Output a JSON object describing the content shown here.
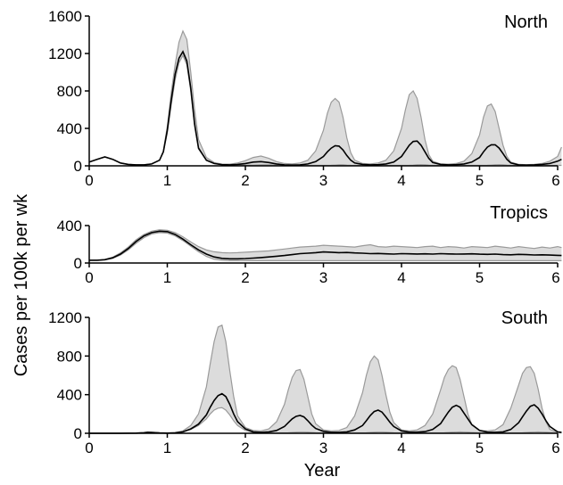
{
  "chart_data": [
    {
      "type": "area",
      "title": "North",
      "xlim": [
        0,
        6
      ],
      "ylim": [
        0,
        1600
      ],
      "x_ticks": [
        "0",
        "1",
        "2",
        "3",
        "4",
        "5",
        "6"
      ],
      "y_ticks": [
        "0",
        "400",
        "800",
        "1200",
        "1600"
      ],
      "grid": false,
      "series": [
        {
          "x": [
            0,
            0.1,
            0.2,
            0.3,
            0.4,
            0.5,
            0.6,
            0.7,
            0.8,
            0.9,
            0.95,
            1.0,
            1.05,
            1.1,
            1.15,
            1.2,
            1.25,
            1.3,
            1.35,
            1.4,
            1.5,
            1.6,
            1.7,
            1.8,
            1.9,
            2.0,
            2.1,
            2.2,
            2.3,
            2.4,
            2.5,
            2.6,
            2.7,
            2.8,
            2.9,
            3.0,
            3.05,
            3.1,
            3.15,
            3.2,
            3.25,
            3.3,
            3.35,
            3.4,
            3.5,
            3.6,
            3.7,
            3.8,
            3.9,
            4.0,
            4.05,
            4.1,
            4.15,
            4.2,
            4.25,
            4.3,
            4.35,
            4.4,
            4.5,
            4.6,
            4.7,
            4.8,
            4.9,
            5.0,
            5.05,
            5.1,
            5.15,
            5.2,
            5.25,
            5.3,
            5.35,
            5.4,
            5.5,
            5.6,
            5.7,
            5.8,
            5.9,
            6.0,
            6.05
          ],
          "lower": [
            40,
            70,
            95,
            70,
            30,
            15,
            10,
            10,
            20,
            60,
            150,
            350,
            650,
            920,
            1100,
            1180,
            1080,
            800,
            420,
            180,
            60,
            25,
            12,
            8,
            8,
            8,
            8,
            10,
            10,
            8,
            5,
            5,
            5,
            5,
            5,
            5,
            5,
            6,
            8,
            10,
            10,
            8,
            6,
            5,
            5,
            5,
            5,
            5,
            5,
            5,
            5,
            6,
            8,
            10,
            12,
            10,
            8,
            6,
            5,
            5,
            5,
            5,
            5,
            5,
            5,
            6,
            8,
            10,
            12,
            10,
            8,
            6,
            5,
            5,
            5,
            5,
            5,
            5,
            5
          ],
          "median": [
            40,
            70,
            95,
            70,
            30,
            15,
            10,
            10,
            20,
            60,
            150,
            380,
            700,
            980,
            1150,
            1220,
            1120,
            830,
            450,
            190,
            60,
            25,
            12,
            10,
            15,
            25,
            40,
            45,
            35,
            20,
            10,
            8,
            10,
            20,
            45,
            100,
            150,
            190,
            215,
            210,
            170,
            110,
            60,
            30,
            15,
            10,
            12,
            20,
            40,
            100,
            160,
            220,
            260,
            265,
            220,
            150,
            80,
            35,
            15,
            10,
            12,
            20,
            40,
            90,
            150,
            200,
            225,
            225,
            190,
            130,
            70,
            30,
            10,
            8,
            10,
            15,
            25,
            50,
            70
          ],
          "upper": [
            40,
            70,
            95,
            70,
            30,
            15,
            10,
            10,
            20,
            60,
            160,
            420,
            780,
            1080,
            1320,
            1440,
            1350,
            1000,
            600,
            280,
            90,
            35,
            18,
            18,
            30,
            55,
            90,
            105,
            80,
            45,
            25,
            20,
            30,
            60,
            160,
            380,
            560,
            680,
            720,
            680,
            520,
            300,
            140,
            60,
            25,
            20,
            30,
            60,
            160,
            400,
            600,
            760,
            800,
            720,
            520,
            280,
            120,
            50,
            20,
            18,
            25,
            50,
            130,
            330,
            520,
            640,
            660,
            580,
            400,
            220,
            100,
            40,
            15,
            12,
            15,
            25,
            50,
            100,
            200
          ]
        }
      ]
    },
    {
      "type": "area",
      "title": "Tropics",
      "xlim": [
        0,
        6
      ],
      "ylim": [
        0,
        400
      ],
      "x_ticks": [
        "0",
        "1",
        "2",
        "3",
        "4",
        "5",
        "6"
      ],
      "y_ticks": [
        "0",
        "400"
      ],
      "grid": false,
      "series": [
        {
          "x": [
            0,
            0.1,
            0.2,
            0.3,
            0.4,
            0.5,
            0.6,
            0.7,
            0.8,
            0.9,
            1.0,
            1.1,
            1.2,
            1.3,
            1.4,
            1.5,
            1.6,
            1.7,
            1.8,
            1.9,
            2.0,
            2.1,
            2.2,
            2.3,
            2.4,
            2.5,
            2.6,
            2.7,
            2.8,
            2.9,
            3.0,
            3.1,
            3.2,
            3.3,
            3.4,
            3.5,
            3.6,
            3.7,
            3.8,
            3.9,
            4.0,
            4.1,
            4.2,
            4.3,
            4.4,
            4.5,
            4.6,
            4.7,
            4.8,
            4.9,
            5.0,
            5.1,
            5.2,
            5.3,
            5.4,
            5.5,
            5.6,
            5.7,
            5.8,
            5.9,
            6.0,
            6.05
          ],
          "lower": [
            30,
            30,
            35,
            50,
            85,
            140,
            210,
            270,
            310,
            325,
            320,
            290,
            240,
            180,
            120,
            70,
            40,
            30,
            25,
            25,
            25,
            25,
            25,
            25,
            25,
            25,
            25,
            25,
            25,
            25,
            25,
            25,
            25,
            25,
            25,
            25,
            25,
            25,
            25,
            25,
            25,
            25,
            25,
            25,
            25,
            25,
            25,
            25,
            25,
            25,
            25,
            25,
            25,
            25,
            25,
            25,
            25,
            25,
            25,
            25,
            25,
            25
          ],
          "median": [
            30,
            30,
            35,
            55,
            95,
            155,
            230,
            290,
            325,
            340,
            335,
            305,
            255,
            195,
            140,
            95,
            65,
            50,
            45,
            45,
            48,
            52,
            58,
            65,
            72,
            80,
            90,
            100,
            105,
            110,
            118,
            115,
            110,
            112,
            108,
            105,
            100,
            102,
            98,
            95,
            100,
            98,
            96,
            98,
            95,
            100,
            97,
            95,
            96,
            98,
            94,
            92,
            95,
            90,
            88,
            92,
            90,
            86,
            88,
            85,
            82,
            80
          ],
          "upper": [
            30,
            30,
            38,
            62,
            108,
            170,
            248,
            305,
            340,
            355,
            350,
            325,
            280,
            225,
            175,
            140,
            120,
            110,
            108,
            110,
            115,
            120,
            125,
            130,
            140,
            150,
            160,
            170,
            175,
            180,
            190,
            185,
            180,
            175,
            170,
            185,
            195,
            175,
            170,
            180,
            175,
            170,
            165,
            175,
            180,
            165,
            175,
            170,
            160,
            175,
            170,
            165,
            180,
            170,
            160,
            175,
            165,
            155,
            170,
            160,
            175,
            165
          ]
        }
      ]
    },
    {
      "type": "area",
      "title": "South",
      "xlabel": "Year",
      "xlim": [
        0,
        6
      ],
      "ylim": [
        0,
        1200
      ],
      "x_ticks": [
        "0",
        "1",
        "2",
        "3",
        "4",
        "5",
        "6"
      ],
      "y_ticks": [
        "0",
        "400",
        "800",
        "1200"
      ],
      "grid": false,
      "series": [
        {
          "x": [
            0,
            0.2,
            0.4,
            0.6,
            0.7,
            0.75,
            0.8,
            0.9,
            1.0,
            1.1,
            1.2,
            1.3,
            1.4,
            1.5,
            1.55,
            1.6,
            1.65,
            1.7,
            1.75,
            1.8,
            1.85,
            1.9,
            2.0,
            2.1,
            2.2,
            2.3,
            2.4,
            2.5,
            2.55,
            2.6,
            2.65,
            2.7,
            2.75,
            2.8,
            2.85,
            2.9,
            3.0,
            3.1,
            3.2,
            3.3,
            3.4,
            3.5,
            3.55,
            3.6,
            3.65,
            3.7,
            3.75,
            3.8,
            3.85,
            3.9,
            4.0,
            4.1,
            4.2,
            4.3,
            4.4,
            4.5,
            4.55,
            4.6,
            4.65,
            4.7,
            4.75,
            4.8,
            4.85,
            4.9,
            5.0,
            5.1,
            5.2,
            5.3,
            5.4,
            5.5,
            5.55,
            5.6,
            5.65,
            5.7,
            5.75,
            5.8,
            5.85,
            5.9,
            6.0,
            6.05
          ],
          "lower": [
            0,
            0,
            0,
            2,
            5,
            8,
            6,
            3,
            2,
            5,
            15,
            40,
            80,
            150,
            200,
            240,
            260,
            265,
            240,
            190,
            130,
            80,
            30,
            10,
            5,
            5,
            5,
            5,
            6,
            8,
            10,
            12,
            12,
            10,
            8,
            6,
            5,
            5,
            5,
            5,
            5,
            5,
            6,
            8,
            10,
            12,
            12,
            10,
            8,
            6,
            5,
            5,
            5,
            5,
            5,
            5,
            6,
            8,
            10,
            12,
            14,
            12,
            10,
            8,
            5,
            5,
            5,
            5,
            5,
            5,
            6,
            8,
            10,
            12,
            14,
            12,
            10,
            8,
            5,
            5
          ],
          "median": [
            0,
            0,
            0,
            2,
            6,
            10,
            8,
            4,
            2,
            5,
            15,
            45,
            95,
            190,
            270,
            340,
            390,
            410,
            380,
            300,
            200,
            120,
            45,
            15,
            10,
            15,
            30,
            70,
            110,
            150,
            175,
            185,
            170,
            130,
            85,
            50,
            20,
            10,
            10,
            15,
            35,
            80,
            130,
            185,
            225,
            240,
            220,
            170,
            115,
            70,
            25,
            12,
            12,
            18,
            40,
            100,
            160,
            220,
            270,
            290,
            270,
            210,
            150,
            90,
            30,
            12,
            10,
            15,
            40,
            110,
            170,
            230,
            280,
            295,
            260,
            200,
            130,
            70,
            15,
            10
          ],
          "upper": [
            0,
            0,
            0,
            3,
            8,
            14,
            10,
            5,
            3,
            8,
            25,
            80,
            200,
            480,
            720,
            950,
            1100,
            1120,
            950,
            650,
            380,
            180,
            60,
            30,
            25,
            45,
            120,
            300,
            450,
            580,
            650,
            660,
            560,
            380,
            200,
            100,
            35,
            25,
            30,
            60,
            180,
            420,
            600,
            740,
            800,
            760,
            600,
            400,
            220,
            110,
            35,
            25,
            35,
            80,
            200,
            450,
            580,
            660,
            700,
            680,
            560,
            380,
            200,
            90,
            30,
            25,
            35,
            90,
            260,
            500,
            620,
            680,
            690,
            620,
            460,
            260,
            120,
            40,
            10,
            5
          ]
        }
      ]
    }
  ],
  "shared_ylabel": "Cases per 100k per wk",
  "colors": {
    "band": "#dcdcdc",
    "band_edge": "#9a9a9a",
    "median": "#000000",
    "axis": "#000000"
  }
}
